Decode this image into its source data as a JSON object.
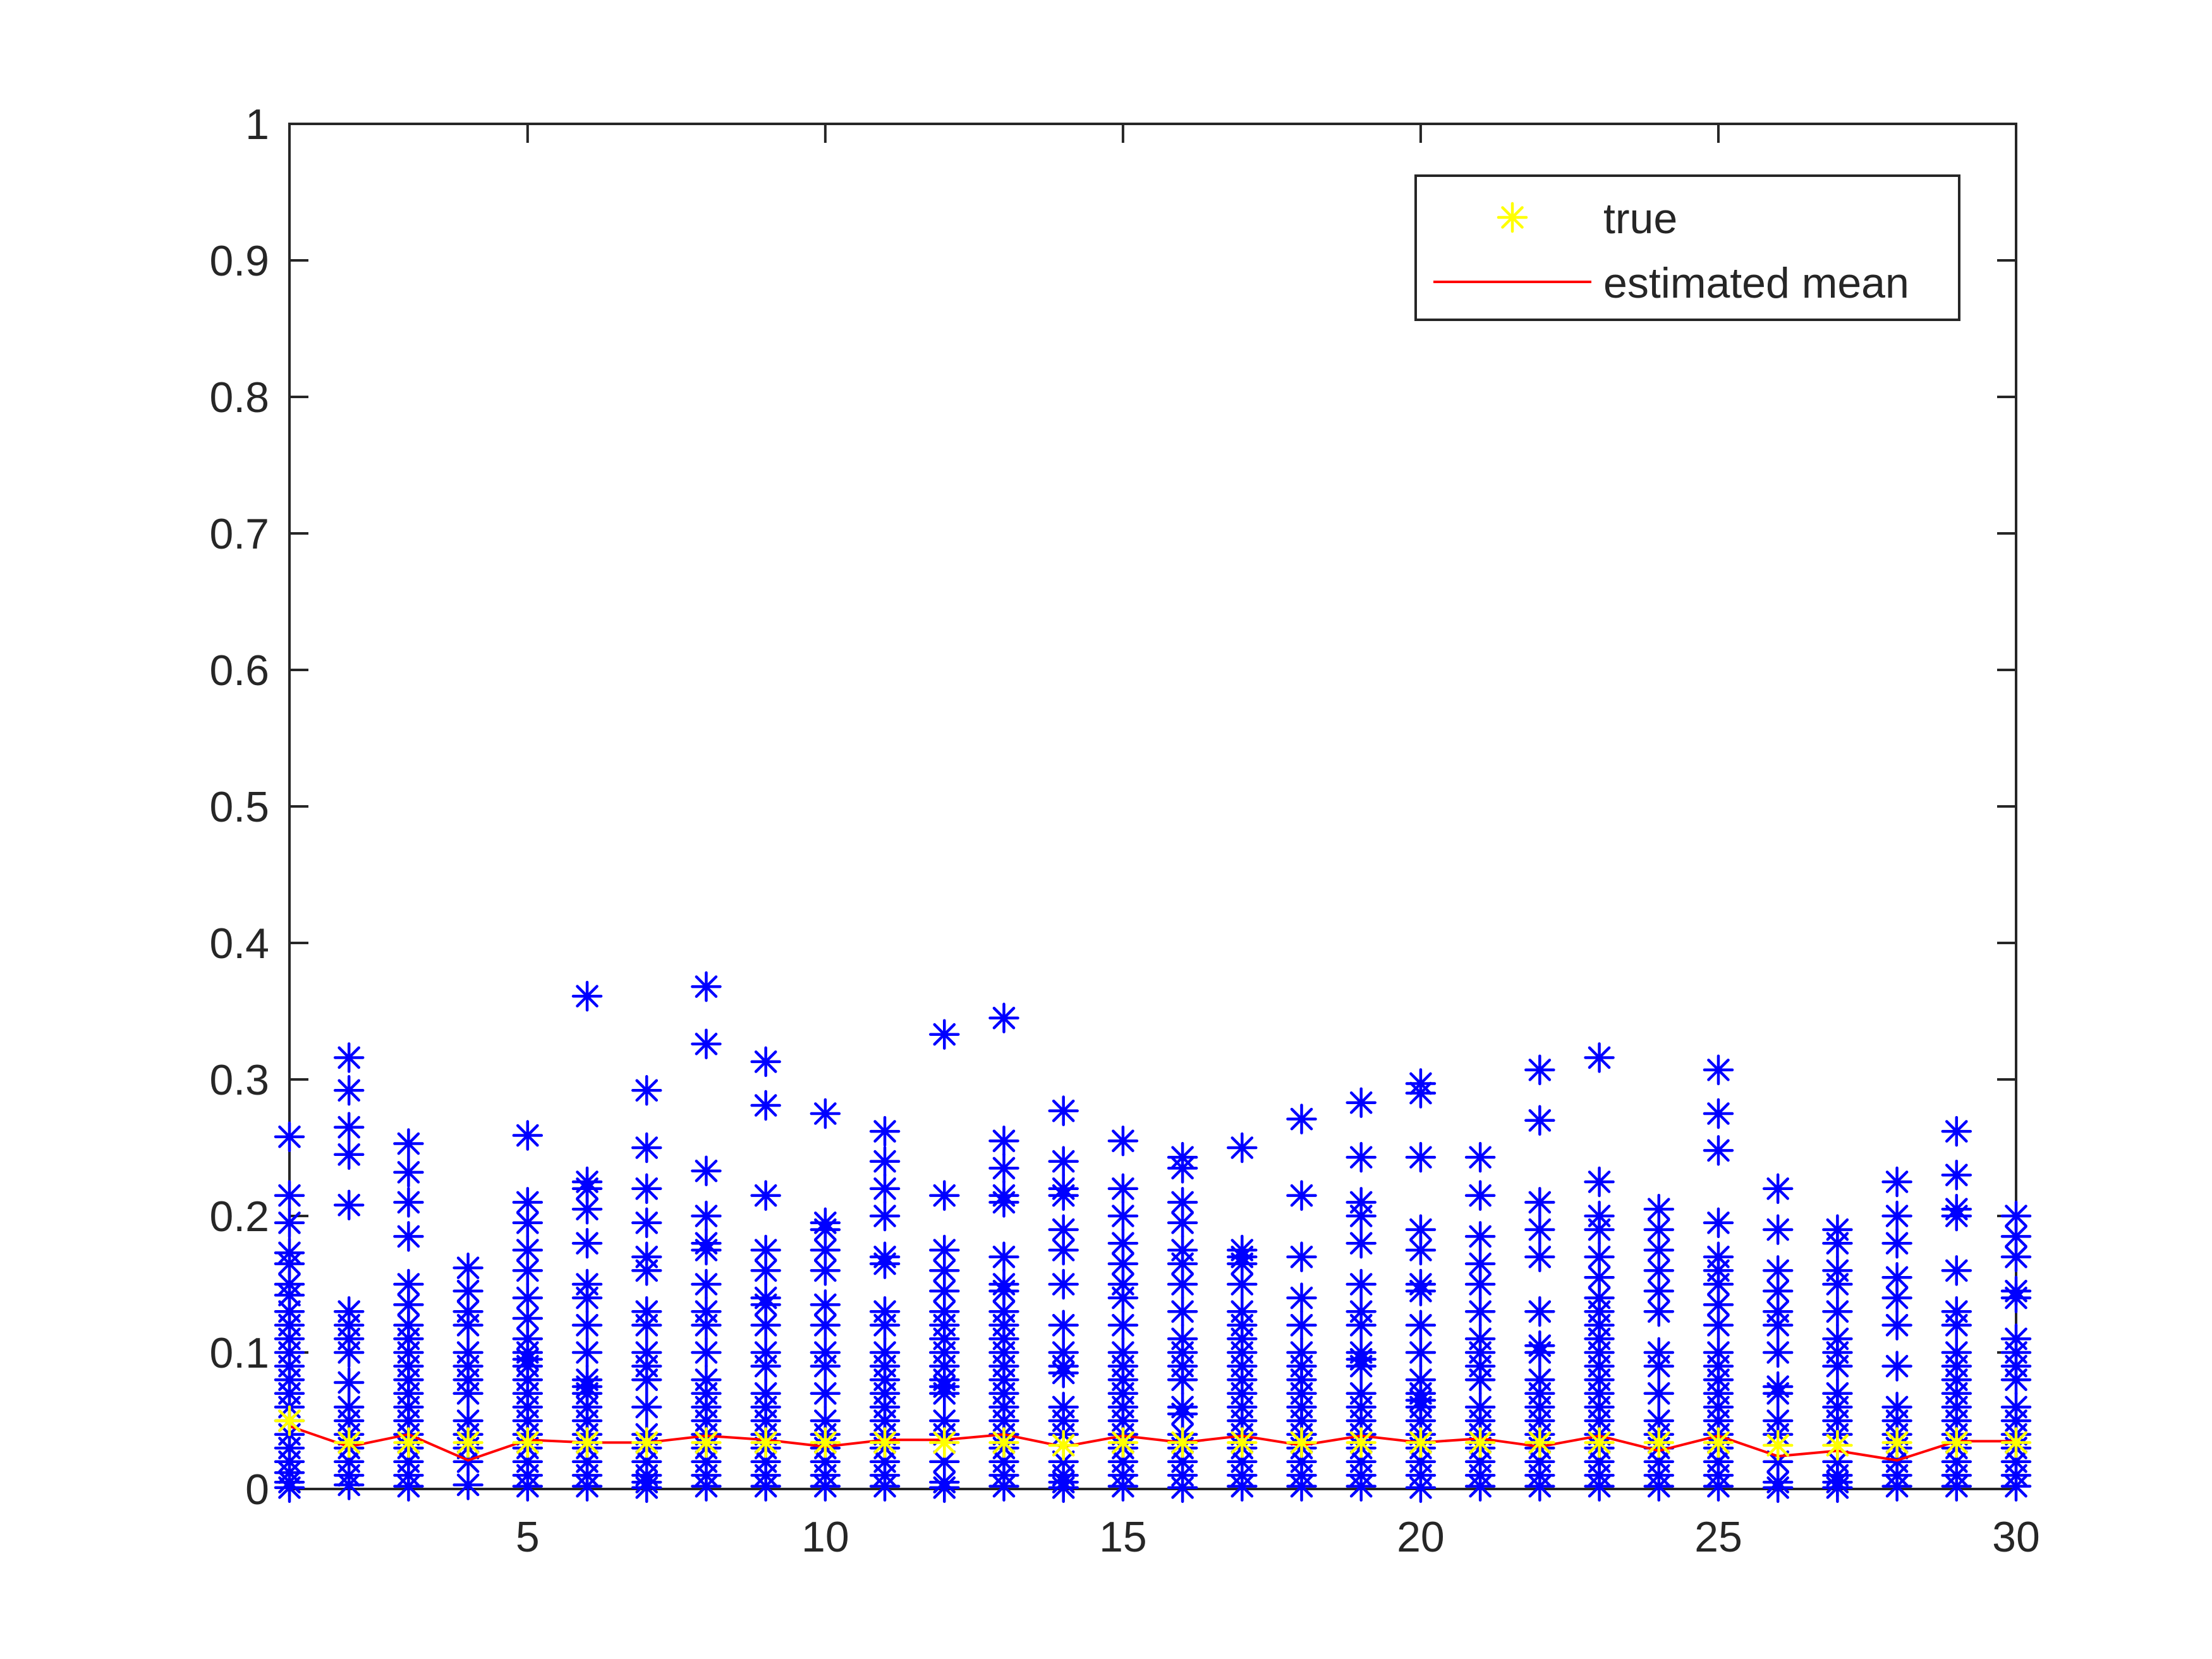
{
  "chart_data": {
    "type": "scatter",
    "xlim": [
      1,
      30
    ],
    "ylim": [
      0,
      1
    ],
    "x_ticks": [
      5,
      10,
      15,
      20,
      25,
      30
    ],
    "y_ticks": [
      0,
      0.1,
      0.2,
      0.3,
      0.4,
      0.5,
      0.6,
      0.7,
      0.8,
      0.9,
      1
    ],
    "y_tick_labels": [
      "0",
      "0.1",
      "0.2",
      "0.3",
      "0.4",
      "0.5",
      "0.6",
      "0.7",
      "0.8",
      "0.9",
      "1"
    ],
    "x_tick_labels": [
      "5",
      "10",
      "15",
      "20",
      "25",
      "30"
    ],
    "grid": false,
    "legend": {
      "placement": "top-right",
      "entries": [
        {
          "label": "true",
          "marker": "asterisk",
          "color": "#ffff00"
        },
        {
          "label": "estimated mean",
          "marker": "line",
          "color": "#ff0000"
        }
      ]
    },
    "colors": {
      "samples": "#0000ff",
      "true": "#ffff00",
      "estimated_mean": "#ff0000",
      "axes": "#262626"
    },
    "series": [
      {
        "role": "samples",
        "marker": "asterisk",
        "columns": [
          {
            "x": 1,
            "y": [
              0.258,
              0.215,
              0.195,
              0.173,
              0.165,
              0.15,
              0.142,
              0.13,
              0.12,
              0.11,
              0.1,
              0.09,
              0.08,
              0.07,
              0.06,
              0.05,
              0.04,
              0.03,
              0.02,
              0.012,
              0.005,
              0.001
            ]
          },
          {
            "x": 2,
            "y": [
              0.316,
              0.292,
              0.265,
              0.245,
              0.208,
              0.13,
              0.12,
              0.11,
              0.1,
              0.078,
              0.06,
              0.05,
              0.04,
              0.03,
              0.02,
              0.01,
              0.003
            ]
          },
          {
            "x": 3,
            "y": [
              0.253,
              0.232,
              0.21,
              0.185,
              0.15,
              0.135,
              0.12,
              0.11,
              0.1,
              0.09,
              0.08,
              0.07,
              0.06,
              0.05,
              0.04,
              0.03,
              0.02,
              0.01,
              0.002
            ]
          },
          {
            "x": 4,
            "y": [
              0.162,
              0.145,
              0.13,
              0.12,
              0.1,
              0.09,
              0.08,
              0.07,
              0.05,
              0.04,
              0.03,
              0.02,
              0.003
            ]
          },
          {
            "x": 5,
            "y": [
              0.259,
              0.21,
              0.195,
              0.175,
              0.16,
              0.14,
              0.125,
              0.11,
              0.1,
              0.095,
              0.09,
              0.08,
              0.07,
              0.06,
              0.05,
              0.04,
              0.03,
              0.02,
              0.01,
              0.002
            ]
          },
          {
            "x": 6,
            "y": [
              0.361,
              0.225,
              0.22,
              0.205,
              0.18,
              0.15,
              0.14,
              0.12,
              0.1,
              0.08,
              0.075,
              0.07,
              0.06,
              0.05,
              0.04,
              0.03,
              0.02,
              0.01,
              0.002
            ]
          },
          {
            "x": 7,
            "y": [
              0.292,
              0.25,
              0.22,
              0.195,
              0.17,
              0.16,
              0.13,
              0.12,
              0.1,
              0.09,
              0.08,
              0.06,
              0.04,
              0.03,
              0.02,
              0.01,
              0.005,
              0.001
            ]
          },
          {
            "x": 8,
            "y": [
              0.368,
              0.326,
              0.233,
              0.2,
              0.18,
              0.175,
              0.15,
              0.13,
              0.12,
              0.1,
              0.08,
              0.07,
              0.06,
              0.05,
              0.04,
              0.03,
              0.02,
              0.01,
              0.002
            ]
          },
          {
            "x": 9,
            "y": [
              0.313,
              0.281,
              0.215,
              0.175,
              0.16,
              0.14,
              0.135,
              0.12,
              0.1,
              0.09,
              0.07,
              0.06,
              0.05,
              0.04,
              0.03,
              0.02,
              0.01,
              0.002
            ]
          },
          {
            "x": 10,
            "y": [
              0.275,
              0.195,
              0.19,
              0.175,
              0.16,
              0.135,
              0.12,
              0.1,
              0.09,
              0.07,
              0.05,
              0.04,
              0.03,
              0.02,
              0.01,
              0.002
            ]
          },
          {
            "x": 11,
            "y": [
              0.262,
              0.24,
              0.22,
              0.2,
              0.17,
              0.165,
              0.13,
              0.12,
              0.1,
              0.09,
              0.08,
              0.07,
              0.06,
              0.05,
              0.04,
              0.03,
              0.02,
              0.01,
              0.002
            ]
          },
          {
            "x": 12,
            "y": [
              0.333,
              0.215,
              0.175,
              0.16,
              0.145,
              0.13,
              0.12,
              0.11,
              0.1,
              0.09,
              0.08,
              0.075,
              0.07,
              0.05,
              0.04,
              0.02,
              0.005,
              0.001
            ]
          },
          {
            "x": 13,
            "y": [
              0.345,
              0.255,
              0.235,
              0.215,
              0.21,
              0.17,
              0.15,
              0.145,
              0.13,
              0.12,
              0.11,
              0.1,
              0.09,
              0.08,
              0.07,
              0.06,
              0.05,
              0.04,
              0.03,
              0.02,
              0.01,
              0.002
            ]
          },
          {
            "x": 14,
            "y": [
              0.277,
              0.24,
              0.22,
              0.215,
              0.19,
              0.175,
              0.15,
              0.12,
              0.1,
              0.09,
              0.085,
              0.06,
              0.05,
              0.04,
              0.02,
              0.01,
              0.005,
              0.001
            ]
          },
          {
            "x": 15,
            "y": [
              0.255,
              0.22,
              0.2,
              0.18,
              0.165,
              0.15,
              0.14,
              0.12,
              0.1,
              0.09,
              0.08,
              0.07,
              0.06,
              0.05,
              0.04,
              0.03,
              0.02,
              0.01,
              0.002
            ]
          },
          {
            "x": 16,
            "y": [
              0.243,
              0.235,
              0.21,
              0.195,
              0.175,
              0.165,
              0.15,
              0.13,
              0.11,
              0.1,
              0.09,
              0.08,
              0.06,
              0.055,
              0.04,
              0.03,
              0.02,
              0.01,
              0.001
            ]
          },
          {
            "x": 17,
            "y": [
              0.25,
              0.175,
              0.17,
              0.165,
              0.15,
              0.13,
              0.12,
              0.11,
              0.1,
              0.09,
              0.08,
              0.07,
              0.06,
              0.05,
              0.04,
              0.03,
              0.02,
              0.01,
              0.002
            ]
          },
          {
            "x": 18,
            "y": [
              0.271,
              0.215,
              0.17,
              0.14,
              0.12,
              0.1,
              0.09,
              0.08,
              0.07,
              0.06,
              0.05,
              0.04,
              0.03,
              0.02,
              0.01,
              0.002
            ]
          },
          {
            "x": 19,
            "y": [
              0.283,
              0.243,
              0.21,
              0.2,
              0.18,
              0.15,
              0.13,
              0.12,
              0.1,
              0.095,
              0.09,
              0.07,
              0.06,
              0.05,
              0.04,
              0.03,
              0.02,
              0.01,
              0.002
            ]
          },
          {
            "x": 20,
            "y": [
              0.297,
              0.29,
              0.243,
              0.19,
              0.175,
              0.15,
              0.145,
              0.12,
              0.1,
              0.08,
              0.07,
              0.065,
              0.06,
              0.05,
              0.04,
              0.03,
              0.02,
              0.01,
              0.001
            ]
          },
          {
            "x": 21,
            "y": [
              0.243,
              0.215,
              0.185,
              0.165,
              0.15,
              0.13,
              0.11,
              0.1,
              0.09,
              0.08,
              0.06,
              0.05,
              0.04,
              0.03,
              0.02,
              0.01,
              0.002
            ]
          },
          {
            "x": 22,
            "y": [
              0.307,
              0.27,
              0.21,
              0.19,
              0.17,
              0.13,
              0.105,
              0.1,
              0.08,
              0.07,
              0.06,
              0.05,
              0.04,
              0.03,
              0.02,
              0.01,
              0.002
            ]
          },
          {
            "x": 23,
            "y": [
              0.316,
              0.225,
              0.2,
              0.19,
              0.17,
              0.155,
              0.14,
              0.13,
              0.12,
              0.11,
              0.1,
              0.09,
              0.08,
              0.07,
              0.06,
              0.05,
              0.04,
              0.03,
              0.02,
              0.01,
              0.002
            ]
          },
          {
            "x": 24,
            "y": [
              0.205,
              0.19,
              0.175,
              0.16,
              0.145,
              0.13,
              0.1,
              0.09,
              0.07,
              0.05,
              0.04,
              0.03,
              0.02,
              0.01,
              0.002
            ]
          },
          {
            "x": 25,
            "y": [
              0.307,
              0.275,
              0.248,
              0.195,
              0.17,
              0.16,
              0.15,
              0.135,
              0.12,
              0.1,
              0.09,
              0.08,
              0.07,
              0.06,
              0.05,
              0.04,
              0.03,
              0.02,
              0.01,
              0.002
            ]
          },
          {
            "x": 26,
            "y": [
              0.22,
              0.19,
              0.16,
              0.145,
              0.13,
              0.12,
              0.1,
              0.075,
              0.07,
              0.05,
              0.04,
              0.02,
              0.005,
              0.001
            ]
          },
          {
            "x": 27,
            "y": [
              0.19,
              0.18,
              0.16,
              0.15,
              0.13,
              0.11,
              0.1,
              0.09,
              0.07,
              0.06,
              0.05,
              0.04,
              0.02,
              0.01,
              0.005,
              0.001
            ]
          },
          {
            "x": 28,
            "y": [
              0.225,
              0.2,
              0.18,
              0.155,
              0.14,
              0.12,
              0.09,
              0.06,
              0.05,
              0.04,
              0.03,
              0.02,
              0.01,
              0.002
            ]
          },
          {
            "x": 29,
            "y": [
              0.262,
              0.23,
              0.205,
              0.2,
              0.16,
              0.13,
              0.12,
              0.1,
              0.09,
              0.08,
              0.07,
              0.06,
              0.05,
              0.04,
              0.03,
              0.02,
              0.01,
              0.002
            ]
          },
          {
            "x": 30,
            "y": [
              0.2,
              0.185,
              0.17,
              0.145,
              0.14,
              0.11,
              0.1,
              0.09,
              0.08,
              0.06,
              0.05,
              0.04,
              0.03,
              0.02,
              0.01,
              0.002
            ]
          }
        ]
      },
      {
        "name": "true",
        "marker": "asterisk",
        "x": [
          1,
          2,
          3,
          4,
          5,
          6,
          7,
          8,
          9,
          10,
          11,
          12,
          13,
          14,
          15,
          16,
          17,
          18,
          19,
          20,
          21,
          22,
          23,
          24,
          25,
          26,
          27,
          28,
          29,
          30
        ],
        "values": [
          0.05,
          0.034,
          0.034,
          0.034,
          0.034,
          0.034,
          0.034,
          0.034,
          0.034,
          0.034,
          0.034,
          0.034,
          0.034,
          0.032,
          0.034,
          0.034,
          0.034,
          0.034,
          0.034,
          0.034,
          0.034,
          0.034,
          0.034,
          0.034,
          0.034,
          0.032,
          0.032,
          0.034,
          0.034,
          0.034
        ]
      },
      {
        "name": "estimated mean",
        "marker": "line",
        "x": [
          1,
          2,
          3,
          4,
          5,
          6,
          7,
          8,
          9,
          10,
          11,
          12,
          13,
          14,
          15,
          16,
          17,
          18,
          19,
          20,
          21,
          22,
          23,
          24,
          25,
          26,
          27,
          28,
          29,
          30
        ],
        "values": [
          0.046,
          0.031,
          0.04,
          0.021,
          0.036,
          0.034,
          0.034,
          0.039,
          0.036,
          0.031,
          0.036,
          0.036,
          0.04,
          0.031,
          0.039,
          0.034,
          0.039,
          0.032,
          0.039,
          0.034,
          0.037,
          0.031,
          0.039,
          0.028,
          0.039,
          0.024,
          0.028,
          0.021,
          0.035,
          0.035
        ]
      }
    ]
  }
}
